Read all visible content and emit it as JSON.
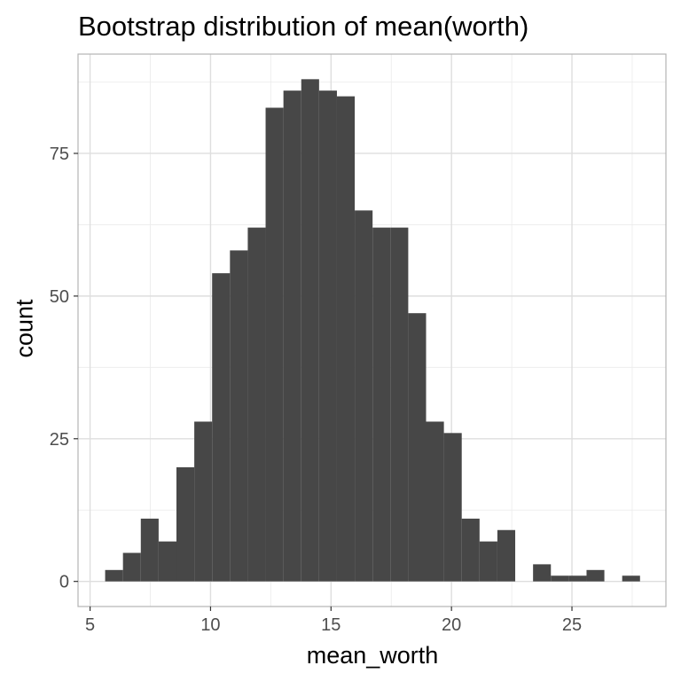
{
  "chart_data": {
    "type": "bar",
    "title": "Bootstrap distribution of mean(worth)",
    "xlabel": "mean_worth",
    "ylabel": "count",
    "bin_start": 5.625,
    "bin_width": 0.74,
    "values": [
      2,
      5,
      11,
      7,
      20,
      28,
      54,
      58,
      62,
      83,
      86,
      88,
      86,
      85,
      65,
      62,
      62,
      47,
      28,
      26,
      11,
      7,
      9,
      0,
      3,
      1,
      1,
      2,
      0,
      1
    ],
    "xlim": [
      4.5,
      28.9
    ],
    "ylim": [
      -4.4,
      92.4
    ],
    "xticks": [
      5,
      10,
      15,
      20,
      25
    ],
    "yticks": [
      0,
      25,
      50,
      75
    ],
    "grid": true,
    "bar_color": "#474747",
    "theme": "light"
  }
}
